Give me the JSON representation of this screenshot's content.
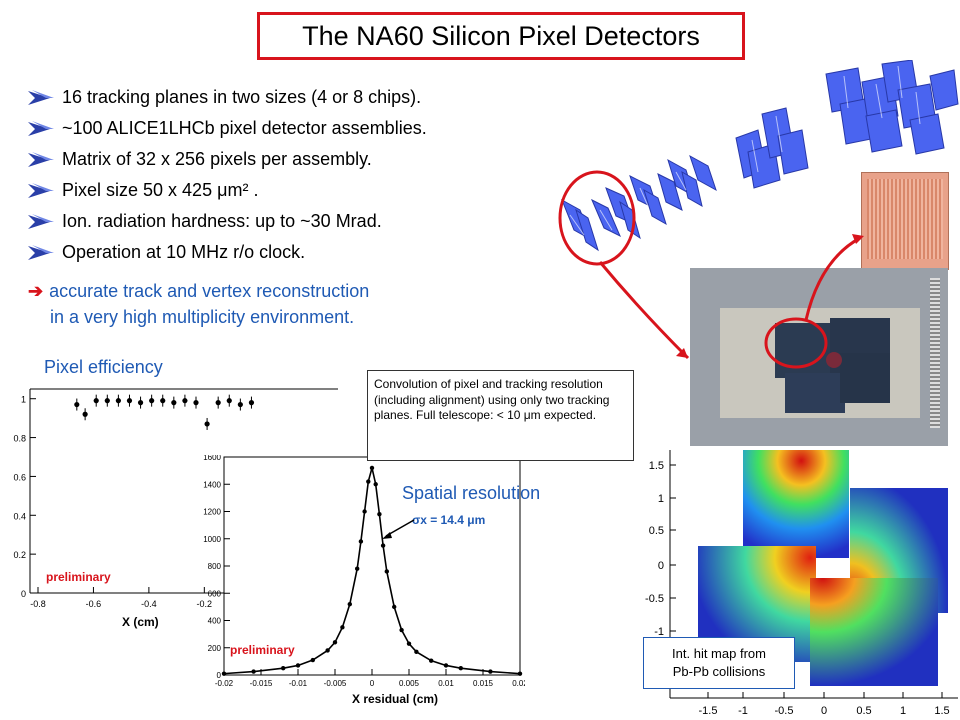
{
  "title": "The NA60 Silicon Pixel Detectors",
  "bullets": [
    "16 tracking planes in two sizes (4 or 8 chips).",
    "~100 ALICE1LHCb pixel detector assemblies.",
    "Matrix of 32 x 256 pixels per assembly.",
    "Pixel size 50 x 425 μm² .",
    "Ion. radiation hardness: up to ~30 Mrad.",
    "Operation at 10 MHz r/o clock."
  ],
  "conclusion": {
    "symbol": "➔",
    "line1": "accurate track and vertex reconstruction",
    "line2": "in a very high multiplicity environment."
  },
  "efficiency": {
    "label": "Pixel efficiency",
    "preliminary": "preliminary",
    "xlabel": "X (cm)"
  },
  "note": "Convolution of pixel and tracking resolution (including alignment) using only two tracking planes. Full telescope: < 10 μm expected.",
  "resolution": {
    "label": "Spatial resolution",
    "sigma": "σx = 14.4 μm",
    "preliminary": "preliminary",
    "xlabel": "X residual (cm)"
  },
  "hitmap": {
    "line1": "Int. hit map from",
    "line2": "Pb-Pb collisions"
  },
  "colors": {
    "accent_red": "#d8141c",
    "text_blue": "#1f5ab4",
    "plane_blue": "#4a64f0"
  },
  "chart_data": [
    {
      "type": "scatter",
      "title": "",
      "xlabel": "X (cm)",
      "ylabel": "",
      "xlim": [
        -0.8,
        0.0
      ],
      "ylim": [
        0.0,
        1.05
      ],
      "x_ticks": [
        "-0.8",
        "-0.6",
        "-0.4",
        "-0.2"
      ],
      "y_ticks": [
        "0",
        "0.2",
        "0.4",
        "0.6",
        "0.8",
        "1"
      ],
      "x": [
        -0.66,
        -0.63,
        -0.59,
        -0.55,
        -0.51,
        -0.47,
        -0.43,
        -0.39,
        -0.35,
        -0.31,
        -0.27,
        -0.23,
        -0.19,
        -0.15,
        -0.11,
        -0.07,
        -0.03
      ],
      "y": [
        0.97,
        0.92,
        0.99,
        0.99,
        0.99,
        0.99,
        0.98,
        0.99,
        0.99,
        0.98,
        0.99,
        0.98,
        0.87,
        0.98,
        0.99,
        0.97,
        0.98
      ]
    },
    {
      "type": "line",
      "title": "",
      "xlabel": "X residual (cm)",
      "ylabel": "",
      "xlim": [
        -0.02,
        0.02
      ],
      "ylim": [
        0,
        1600
      ],
      "x_ticks": [
        "-0.02",
        "-0.015",
        "-0.01",
        "-0.005",
        "0",
        "0.005",
        "0.01",
        "0.015",
        "0.02"
      ],
      "y_ticks": [
        "0",
        "200",
        "400",
        "600",
        "800",
        "1000",
        "1200",
        "1400",
        "1600"
      ],
      "x": [
        -0.02,
        -0.016,
        -0.012,
        -0.01,
        -0.008,
        -0.006,
        -0.005,
        -0.004,
        -0.003,
        -0.002,
        -0.0015,
        -0.001,
        -0.0005,
        0.0,
        0.0005,
        0.001,
        0.0015,
        0.002,
        0.003,
        0.004,
        0.005,
        0.006,
        0.008,
        0.01,
        0.012,
        0.016,
        0.02
      ],
      "y": [
        10,
        25,
        50,
        70,
        110,
        180,
        240,
        350,
        520,
        780,
        980,
        1200,
        1420,
        1520,
        1400,
        1180,
        950,
        760,
        500,
        330,
        230,
        170,
        105,
        70,
        50,
        25,
        10
      ]
    }
  ]
}
